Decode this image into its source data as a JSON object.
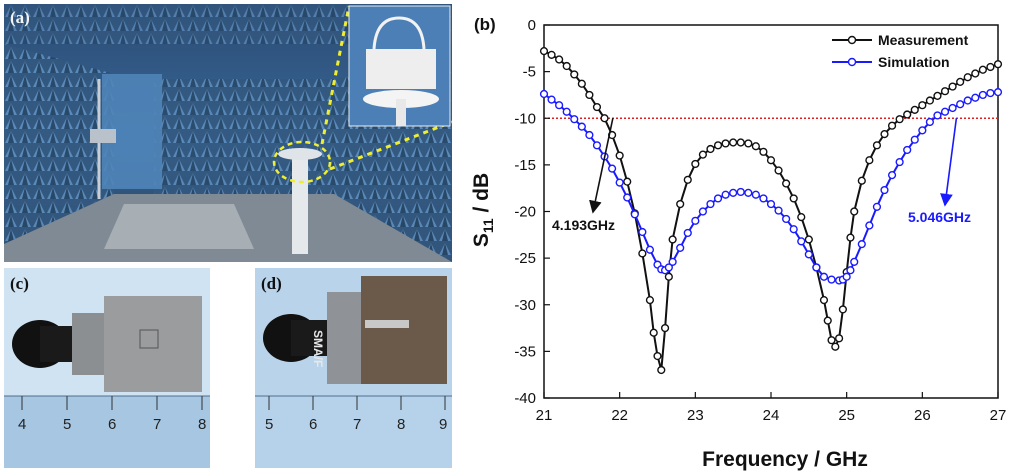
{
  "panels": {
    "a": {
      "label": "(a)"
    },
    "b": {
      "label": "(b)"
    },
    "c": {
      "label": "(c)",
      "ruler_ticks": [
        "4",
        "5",
        "6",
        "7",
        "8"
      ]
    },
    "d": {
      "label": "(d)",
      "ruler_ticks": [
        "5",
        "6",
        "7",
        "8",
        "9"
      ],
      "connector_text": "SMA/F"
    }
  },
  "chart_data": {
    "type": "line",
    "xlabel": "Frequency / GHz",
    "ylabel": "S11 / dB",
    "xlim": [
      21,
      27
    ],
    "ylim": [
      -40,
      0
    ],
    "xticks": [
      "21",
      "22",
      "23",
      "24",
      "25",
      "26",
      "27"
    ],
    "yticks": [
      "0",
      "-5",
      "-10",
      "-15",
      "-20",
      "-25",
      "-30",
      "-35",
      "-40"
    ],
    "grid": false,
    "legend_position": "top-right",
    "reference_line": {
      "y": -10,
      "color": "#e0201e",
      "style": "dotted"
    },
    "series": [
      {
        "name": "Measurement",
        "color": "#111111",
        "x": [
          21.0,
          21.1,
          21.2,
          21.3,
          21.4,
          21.5,
          21.6,
          21.7,
          21.8,
          21.9,
          22.0,
          22.1,
          22.2,
          22.3,
          22.4,
          22.45,
          22.5,
          22.55,
          22.6,
          22.65,
          22.7,
          22.8,
          22.9,
          23.0,
          23.1,
          23.2,
          23.3,
          23.4,
          23.5,
          23.6,
          23.7,
          23.8,
          23.9,
          24.0,
          24.1,
          24.2,
          24.3,
          24.4,
          24.5,
          24.6,
          24.7,
          24.75,
          24.8,
          24.85,
          24.9,
          24.95,
          25.0,
          25.05,
          25.1,
          25.2,
          25.3,
          25.4,
          25.5,
          25.6,
          25.7,
          25.8,
          25.9,
          26.0,
          26.1,
          26.2,
          26.3,
          26.4,
          26.5,
          26.6,
          26.7,
          26.8,
          26.9,
          27.0
        ],
        "y": [
          -2.8,
          -3.2,
          -3.7,
          -4.4,
          -5.3,
          -6.3,
          -7.5,
          -8.8,
          -10.0,
          -11.8,
          -14.0,
          -16.8,
          -20.2,
          -24.5,
          -29.5,
          -33.0,
          -35.5,
          -37.0,
          -32.5,
          -27.0,
          -23.0,
          -19.2,
          -16.6,
          -14.9,
          -13.9,
          -13.3,
          -12.9,
          -12.7,
          -12.6,
          -12.6,
          -12.7,
          -13.0,
          -13.6,
          -14.5,
          -15.6,
          -17.0,
          -18.6,
          -20.6,
          -23.0,
          -26.0,
          -29.5,
          -31.7,
          -33.8,
          -34.5,
          -33.6,
          -30.5,
          -26.5,
          -22.8,
          -20.0,
          -16.7,
          -14.5,
          -12.9,
          -11.7,
          -10.8,
          -10.1,
          -9.6,
          -9.1,
          -8.6,
          -8.1,
          -7.6,
          -7.1,
          -6.6,
          -6.1,
          -5.6,
          -5.2,
          -4.8,
          -4.5,
          -4.2
        ]
      },
      {
        "name": "Simulation",
        "color": "#1a1aff",
        "x": [
          21.0,
          21.1,
          21.2,
          21.3,
          21.4,
          21.5,
          21.6,
          21.7,
          21.8,
          21.9,
          22.0,
          22.1,
          22.2,
          22.3,
          22.4,
          22.5,
          22.55,
          22.6,
          22.65,
          22.7,
          22.8,
          22.9,
          23.0,
          23.1,
          23.2,
          23.3,
          23.4,
          23.5,
          23.6,
          23.7,
          23.8,
          23.9,
          24.0,
          24.1,
          24.2,
          24.3,
          24.4,
          24.5,
          24.6,
          24.7,
          24.8,
          24.9,
          24.95,
          25.0,
          25.05,
          25.1,
          25.2,
          25.3,
          25.4,
          25.5,
          25.6,
          25.7,
          25.8,
          25.9,
          26.0,
          26.1,
          26.2,
          26.3,
          26.4,
          26.5,
          26.6,
          26.7,
          26.8,
          26.9,
          27.0
        ],
        "y": [
          -7.4,
          -8.0,
          -8.6,
          -9.3,
          -10.1,
          -10.9,
          -11.8,
          -12.9,
          -14.1,
          -15.4,
          -16.9,
          -18.5,
          -20.3,
          -22.2,
          -24.1,
          -25.7,
          -26.2,
          -26.3,
          -26.0,
          -25.4,
          -23.9,
          -22.3,
          -21.0,
          -20.0,
          -19.2,
          -18.6,
          -18.2,
          -18.0,
          -17.9,
          -18.0,
          -18.2,
          -18.6,
          -19.2,
          -19.9,
          -20.8,
          -21.9,
          -23.2,
          -24.6,
          -26.0,
          -27.0,
          -27.3,
          -27.4,
          -27.3,
          -27.0,
          -26.3,
          -25.4,
          -23.5,
          -21.5,
          -19.5,
          -17.7,
          -16.1,
          -14.7,
          -13.4,
          -12.3,
          -11.3,
          -10.4,
          -9.7,
          -9.3,
          -8.9,
          -8.5,
          -8.1,
          -7.8,
          -7.5,
          -7.3,
          -7.2
        ]
      }
    ],
    "annotations": [
      {
        "text": "4.193GHz",
        "color": "#111111",
        "points_to_x": 21.91,
        "points_to_y": -10
      },
      {
        "text": "5.046GHz",
        "color": "#1a1aff",
        "points_to_x": 26.45,
        "points_to_y": -10
      }
    ]
  }
}
